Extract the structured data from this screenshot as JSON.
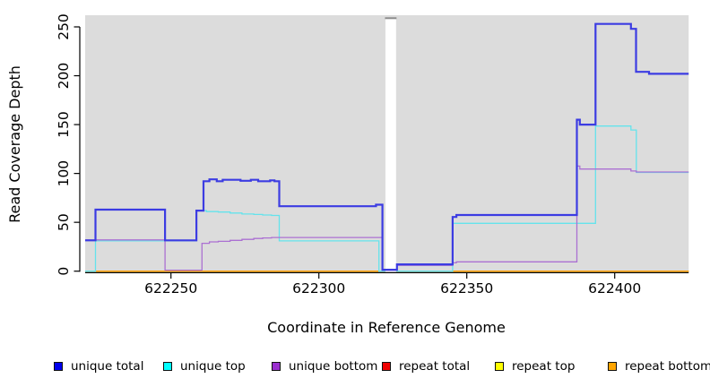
{
  "figure": {
    "xlabel": "Coordinate in Reference Genome",
    "ylabel": "Read Coverage Depth"
  },
  "legend": {
    "items": [
      {
        "label": "unique total",
        "swatch_color": "#0000ee",
        "x": 60
      },
      {
        "label": "unique top",
        "swatch_color": "#00ffff",
        "x": 182
      },
      {
        "label": "unique bottom",
        "swatch_color": "#9b30d0",
        "x": 303
      },
      {
        "label": "repeat total",
        "swatch_color": "#ee0000",
        "x": 426
      },
      {
        "label": "repeat top",
        "swatch_color": "#ffff00",
        "x": 552
      },
      {
        "label": "repeat bottom",
        "swatch_color": "#ffa500",
        "x": 678
      }
    ]
  },
  "chart_data": {
    "type": "line",
    "subtype": "step-coverage",
    "title": "",
    "xlabel": "Coordinate in Reference Genome",
    "ylabel": "Read Coverage Depth",
    "xlim": [
      622221,
      622425
    ],
    "ylim": [
      0,
      260
    ],
    "x_ticks": [
      622250,
      622300,
      622350,
      622400
    ],
    "y_ticks": [
      0,
      50,
      100,
      150,
      200,
      250
    ],
    "grid": false,
    "legend_position": "bottom",
    "plot_bg": "#dcdcdc",
    "gap_region": {
      "start": 622322.5,
      "end": 622326.1,
      "note": "white band, no data"
    },
    "series": [
      {
        "name": "repeat total",
        "color": "#e00000",
        "width": 1.3,
        "steps": [
          [
            622221,
            0
          ]
        ],
        "x_end": 622425
      },
      {
        "name": "repeat top",
        "color": "#ffff00",
        "width": 1.3,
        "steps": [
          [
            622221,
            0
          ]
        ],
        "x_end": 622425
      },
      {
        "name": "repeat bottom",
        "color": "#ff9d00",
        "width": 1.4,
        "steps": [
          [
            622221,
            0
          ]
        ],
        "x_end": 622425
      },
      {
        "name": "unique top",
        "color": "#64e3ec",
        "width": 1.3,
        "steps": [
          [
            622221,
            0
          ],
          [
            622224.5,
            31
          ],
          [
            622258.6,
            62
          ],
          [
            622262,
            61
          ],
          [
            622266,
            60.5
          ],
          [
            622270,
            59.5
          ],
          [
            622274,
            58.5
          ],
          [
            622278,
            58
          ],
          [
            622281,
            57.5
          ],
          [
            622284,
            57
          ],
          [
            622286.6,
            31
          ],
          [
            622320.3,
            0
          ],
          [
            622345.2,
            49
          ],
          [
            622393.5,
            148.5
          ],
          [
            622405.5,
            144.5
          ],
          [
            622407.3,
            101
          ]
        ],
        "x_end": 622425
      },
      {
        "name": "unique bottom",
        "color": "#ab70d2",
        "width": 1.3,
        "steps": [
          [
            622221,
            32
          ],
          [
            622248,
            1
          ],
          [
            622260.5,
            28.5
          ],
          [
            622263,
            30
          ],
          [
            622266,
            30.5
          ],
          [
            622270,
            31.5
          ],
          [
            622274,
            32.5
          ],
          [
            622278,
            33.5
          ],
          [
            622281,
            34
          ],
          [
            622284,
            34.5
          ],
          [
            622321.5,
            1
          ],
          [
            622326.4,
            6
          ],
          [
            622345.2,
            8.5
          ],
          [
            622346.5,
            9.5
          ],
          [
            622387.2,
            107.5
          ],
          [
            622388.2,
            104.5
          ],
          [
            622405.5,
            102.5
          ],
          [
            622407.3,
            101.5
          ]
        ],
        "x_end": 622425
      },
      {
        "name": "unique total",
        "color": "#3c3ce2",
        "width": 2.2,
        "steps": [
          [
            622221,
            31.5
          ],
          [
            622224.5,
            63
          ],
          [
            622248,
            31.5
          ],
          [
            622258.6,
            62
          ],
          [
            622261,
            92
          ],
          [
            622263,
            94
          ],
          [
            622265.5,
            92
          ],
          [
            622267.5,
            93.5
          ],
          [
            622273.5,
            92.5
          ],
          [
            622277,
            93.5
          ],
          [
            622279.5,
            92
          ],
          [
            622283.5,
            93
          ],
          [
            622285,
            92
          ],
          [
            622286.6,
            66.5
          ],
          [
            622319.3,
            68
          ],
          [
            622321.5,
            1.5
          ],
          [
            622326.4,
            7
          ],
          [
            622345.2,
            55.5
          ],
          [
            622346.5,
            57.5
          ],
          [
            622387.2,
            155
          ],
          [
            622388.2,
            150
          ],
          [
            622393.5,
            253
          ],
          [
            622405.5,
            248
          ],
          [
            622407.2,
            204
          ],
          [
            622411.6,
            202
          ]
        ],
        "x_end": 622425
      }
    ]
  }
}
